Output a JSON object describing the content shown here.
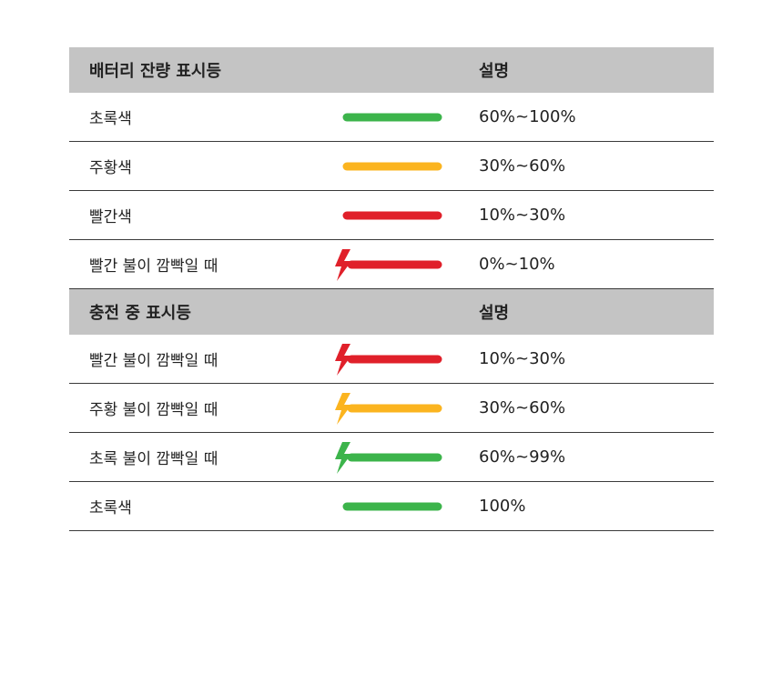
{
  "battery_section": {
    "header": {
      "label": "배터리 잔량 표시등",
      "desc": "설명"
    },
    "rows": [
      {
        "label": "초록색",
        "desc": "60%~100%",
        "color": "#3cb44b",
        "blinking": false
      },
      {
        "label": "주황색",
        "desc": "30%~60%",
        "color": "#fbb41f",
        "blinking": false
      },
      {
        "label": "빨간색",
        "desc": "10%~30%",
        "color": "#e0202a",
        "blinking": false
      },
      {
        "label": "빨간 불이 깜빡일 때",
        "desc": "0%~10%",
        "color": "#e0202a",
        "blinking": true
      }
    ]
  },
  "charging_section": {
    "header": {
      "label": "충전 중 표시등",
      "desc": "설명"
    },
    "rows": [
      {
        "label": "빨간 불이 깜빡일 때",
        "desc": "10%~30%",
        "color": "#e0202a",
        "blinking": true
      },
      {
        "label": "주황 불이 깜빡일 때",
        "desc": "30%~60%",
        "color": "#fbb41f",
        "blinking": true
      },
      {
        "label": "초록 불이 깜빡일 때",
        "desc": "60%~99%",
        "color": "#3cb44b",
        "blinking": true
      },
      {
        "label": "초록색",
        "desc": "100%",
        "color": "#3cb44b",
        "blinking": false
      }
    ]
  },
  "icons": {
    "bar": "indicator-bar",
    "blink": "lightning-bolt-icon"
  }
}
